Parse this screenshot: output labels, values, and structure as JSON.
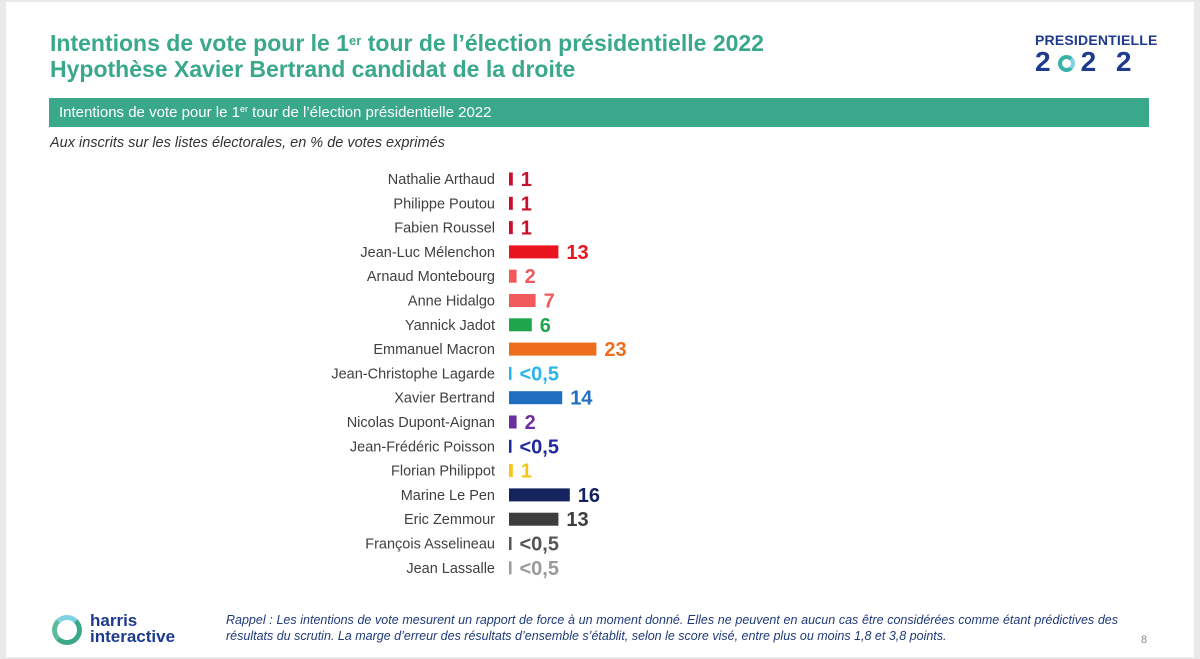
{
  "header": {
    "title_line1_pre": "Intentions de vote pour le 1",
    "title_line1_sup": "er",
    "title_line1_post": " tour de l’élection présidentielle 2022",
    "title_line2": "Hypothèse Xavier Bertrand candidat de la droite",
    "banner_pre": "Intentions de vote pour le 1",
    "banner_sup": "er",
    "banner_post": " tour de l’élection présidentielle 2022",
    "subtitle": "Aux inscrits sur les listes électorales, en % de votes exprimés"
  },
  "logo": {
    "top": "PRESIDENTIELLE",
    "digit1": "2",
    "digits_rest": "2 2"
  },
  "footer": {
    "brand_line1": "harris",
    "brand_line2": "interactive",
    "note": "Rappel : Les intentions de vote mesurent un rapport de force à un moment donné. Elles ne peuvent en aucun cas être considérées comme étant prédictives des résultats du scrutin. La marge d’erreur des résultats d’ensemble s’établit, selon le score visé, entre plus ou moins 1,8 et 3,8 points.",
    "page": "8"
  },
  "chart_data": {
    "type": "bar",
    "orientation": "horizontal",
    "grid": false,
    "categories": [
      "Nathalie Arthaud",
      "Philippe Poutou",
      "Fabien Roussel",
      "Jean-Luc Mélenchon",
      "Arnaud Montebourg",
      "Anne Hidalgo",
      "Yannick Jadot",
      "Emmanuel Macron",
      "Jean-Christophe Lagarde",
      "Xavier Bertrand",
      "Nicolas Dupont-Aignan",
      "Jean-Frédéric Poisson",
      "Florian Philippot",
      "Marine Le Pen",
      "Eric Zemmour",
      "François Asselineau",
      "Jean Lassalle"
    ],
    "values": [
      1,
      1,
      1,
      13,
      2,
      7,
      6,
      23,
      0.5,
      14,
      2,
      0.5,
      1,
      16,
      13,
      0.5,
      0.5
    ],
    "value_labels": [
      "1",
      "1",
      "1",
      "13",
      "2",
      "7",
      "6",
      "23",
      "<0,5",
      "14",
      "2",
      "<0,5",
      "1",
      "16",
      "13",
      "<0,5",
      "<0,5"
    ],
    "colors": [
      "#c8102e",
      "#c8102e",
      "#c8102e",
      "#e8141e",
      "#f05a5a",
      "#f05a5a",
      "#1fa64b",
      "#ec6e1c",
      "#29b5e8",
      "#1f6fc0",
      "#6b2fa2",
      "#1e2a9e",
      "#f5c518",
      "#14235e",
      "#3d3d3d",
      "#555555",
      "#9a9a9a"
    ],
    "xlim": [
      0,
      25
    ]
  }
}
